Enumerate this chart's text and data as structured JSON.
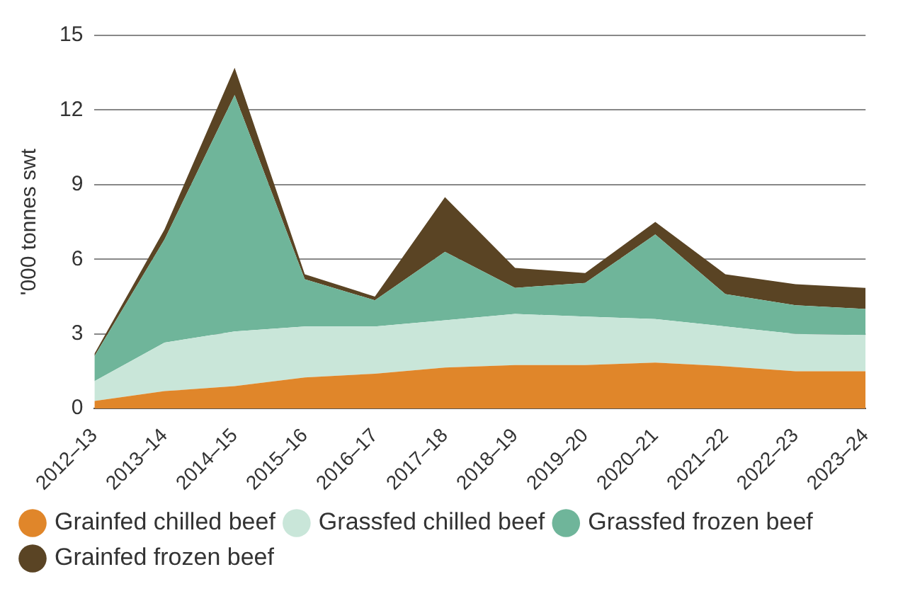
{
  "chart_data": {
    "type": "area",
    "stacked": true,
    "ylabel": "'000 tonnes swt",
    "categories": [
      "2012–13",
      "2013–14",
      "2014–15",
      "2015–16",
      "2016–17",
      "2017–18",
      "2018–19",
      "2019–20",
      "2020–21",
      "2021–22",
      "2022–23",
      "2023–24"
    ],
    "series": [
      {
        "name": "Grainfed chilled beef",
        "color": "#e0862a",
        "values": [
          0.3,
          0.7,
          0.9,
          1.25,
          1.4,
          1.65,
          1.75,
          1.75,
          1.85,
          1.7,
          1.5,
          1.5
        ]
      },
      {
        "name": "Grassfed chilled beef",
        "color": "#c9e6d9",
        "values": [
          0.8,
          1.95,
          2.2,
          2.05,
          1.9,
          1.9,
          2.05,
          1.95,
          1.75,
          1.6,
          1.5,
          1.45
        ]
      },
      {
        "name": "Grassfed frozen beef",
        "color": "#6fb59a",
        "values": [
          1.0,
          4.15,
          9.5,
          1.9,
          1.05,
          2.75,
          1.05,
          1.35,
          3.4,
          1.3,
          1.15,
          1.05
        ]
      },
      {
        "name": "Grainfed frozen beef",
        "color": "#5a4424",
        "values": [
          0.1,
          0.4,
          1.1,
          0.2,
          0.15,
          2.2,
          0.8,
          0.4,
          0.5,
          0.8,
          0.85,
          0.85
        ]
      }
    ],
    "ylim": [
      0,
      15
    ],
    "yticks": [
      0,
      3,
      6,
      9,
      12,
      15
    ],
    "grid": "y",
    "legend": "bottom",
    "marker": "none"
  }
}
